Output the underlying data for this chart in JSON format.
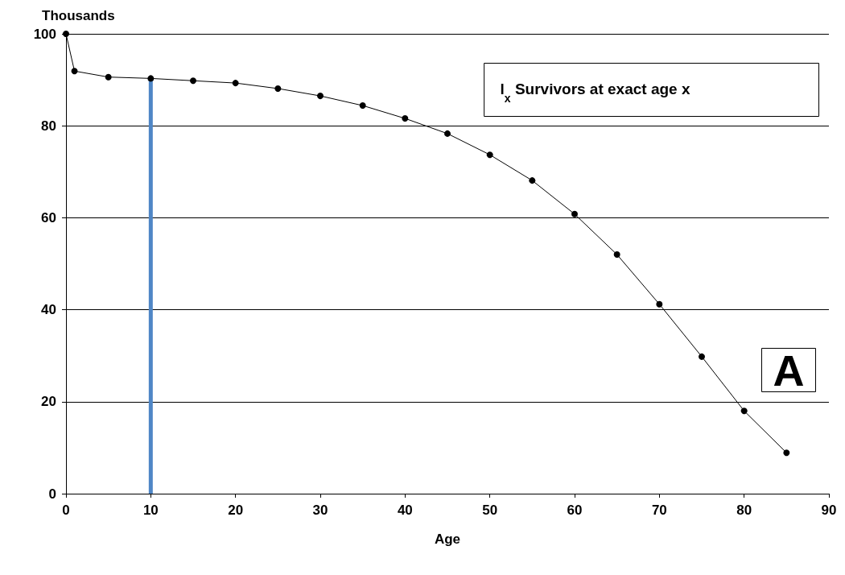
{
  "chart_data": {
    "type": "line",
    "xlabel": "Age",
    "ylabel": "Thousands",
    "x": [
      0,
      1,
      5,
      10,
      15,
      20,
      25,
      30,
      35,
      40,
      45,
      50,
      55,
      60,
      65,
      70,
      75,
      80,
      85
    ],
    "series": [
      {
        "color": "#000000",
        "values": [
          100,
          91.9,
          90.6,
          90.3,
          89.8,
          89.3,
          88.1,
          86.5,
          84.4,
          81.6,
          78.3,
          73.7,
          68.1,
          60.8,
          52,
          41.2,
          29.8,
          18,
          8.9
        ]
      }
    ],
    "xlim": [
      0,
      90
    ],
    "xticks": [
      0,
      10,
      20,
      30,
      40,
      50,
      60,
      70,
      80,
      90
    ],
    "ylim": [
      0,
      100
    ],
    "yticks": [
      0,
      20,
      40,
      60,
      80,
      100
    ],
    "ref_lines": [
      {
        "axis": "x",
        "value": 10,
        "color": "#4f86c6"
      }
    ],
    "annotations": [
      "l$_{x}$ Survivors at exact age x",
      "A"
    ],
    "grid": "y",
    "marker": "circle",
    "line_style": "solid"
  }
}
